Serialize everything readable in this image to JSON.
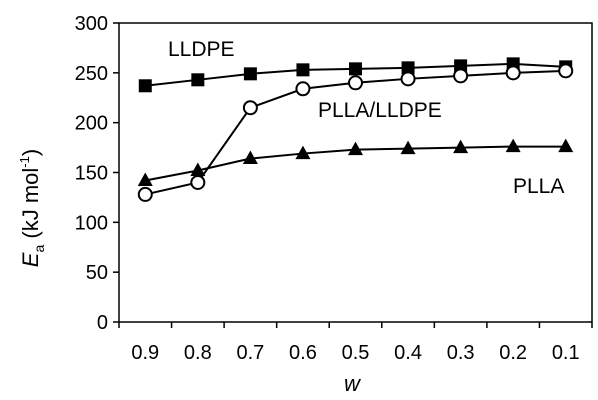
{
  "chart_data": {
    "type": "line",
    "xlabel": "w",
    "ylabel": {
      "symbol": "E",
      "subscript": "a",
      "unit_prefix": " (kJ mol",
      "unit_exponent": "-1",
      "unit_suffix": ")"
    },
    "x": [
      0.9,
      0.8,
      0.7,
      0.6,
      0.5,
      0.4,
      0.3,
      0.2,
      0.1
    ],
    "x_tick_labels": [
      "0.9",
      "0.8",
      "0.7",
      "0.6",
      "0.5",
      "0.4",
      "0.3",
      "0.2",
      "0.1"
    ],
    "x_reversed": true,
    "ylim": [
      0,
      300
    ],
    "y_ticks": [
      0,
      50,
      100,
      150,
      200,
      250,
      300
    ],
    "y_tick_labels": [
      "0",
      "50",
      "100",
      "150",
      "200",
      "250",
      "300"
    ],
    "grid": false,
    "series": [
      {
        "name": "LLDPE",
        "marker": "square-filled",
        "values": [
          237,
          243,
          249,
          253,
          254,
          255,
          257,
          259,
          256
        ]
      },
      {
        "name": "PLLA/LLDPE",
        "marker": "circle-open",
        "values": [
          128,
          140,
          215,
          234,
          240,
          244,
          247,
          250,
          252
        ]
      },
      {
        "name": "PLLA",
        "marker": "triangle-filled",
        "values": [
          142,
          152,
          164,
          169,
          173,
          174,
          175,
          176,
          176
        ]
      }
    ],
    "colors": {
      "line": "#000000",
      "fill": "#000000",
      "open_fill": "#ffffff"
    }
  }
}
